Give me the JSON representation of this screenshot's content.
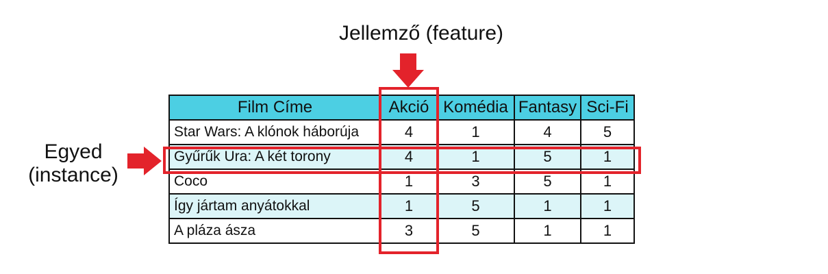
{
  "annotations": {
    "feature_label": "Jellemző (feature)",
    "instance_label_line1": "Egyed",
    "instance_label_line2": "(instance)",
    "highlight_color": "#e3232b",
    "header_color": "#4ccfe3",
    "alt_row_color": "#dcf5f8"
  },
  "table": {
    "columns": [
      "Film Címe",
      "Akció",
      "Komédia",
      "Fantasy",
      "Sci-Fi"
    ],
    "rows": [
      {
        "title": "Star Wars: A klónok háborúja",
        "values": [
          "4",
          "1",
          "4",
          "5"
        ]
      },
      {
        "title": "Gyűrűk Ura: A két torony",
        "values": [
          "4",
          "1",
          "5",
          "1"
        ]
      },
      {
        "title": "Coco",
        "values": [
          "1",
          "3",
          "5",
          "1"
        ]
      },
      {
        "title": "Így jártam anyátokkal",
        "values": [
          "1",
          "5",
          "1",
          "1"
        ]
      },
      {
        "title": "A pláza ásza",
        "values": [
          "3",
          "5",
          "1",
          "1"
        ]
      }
    ]
  }
}
